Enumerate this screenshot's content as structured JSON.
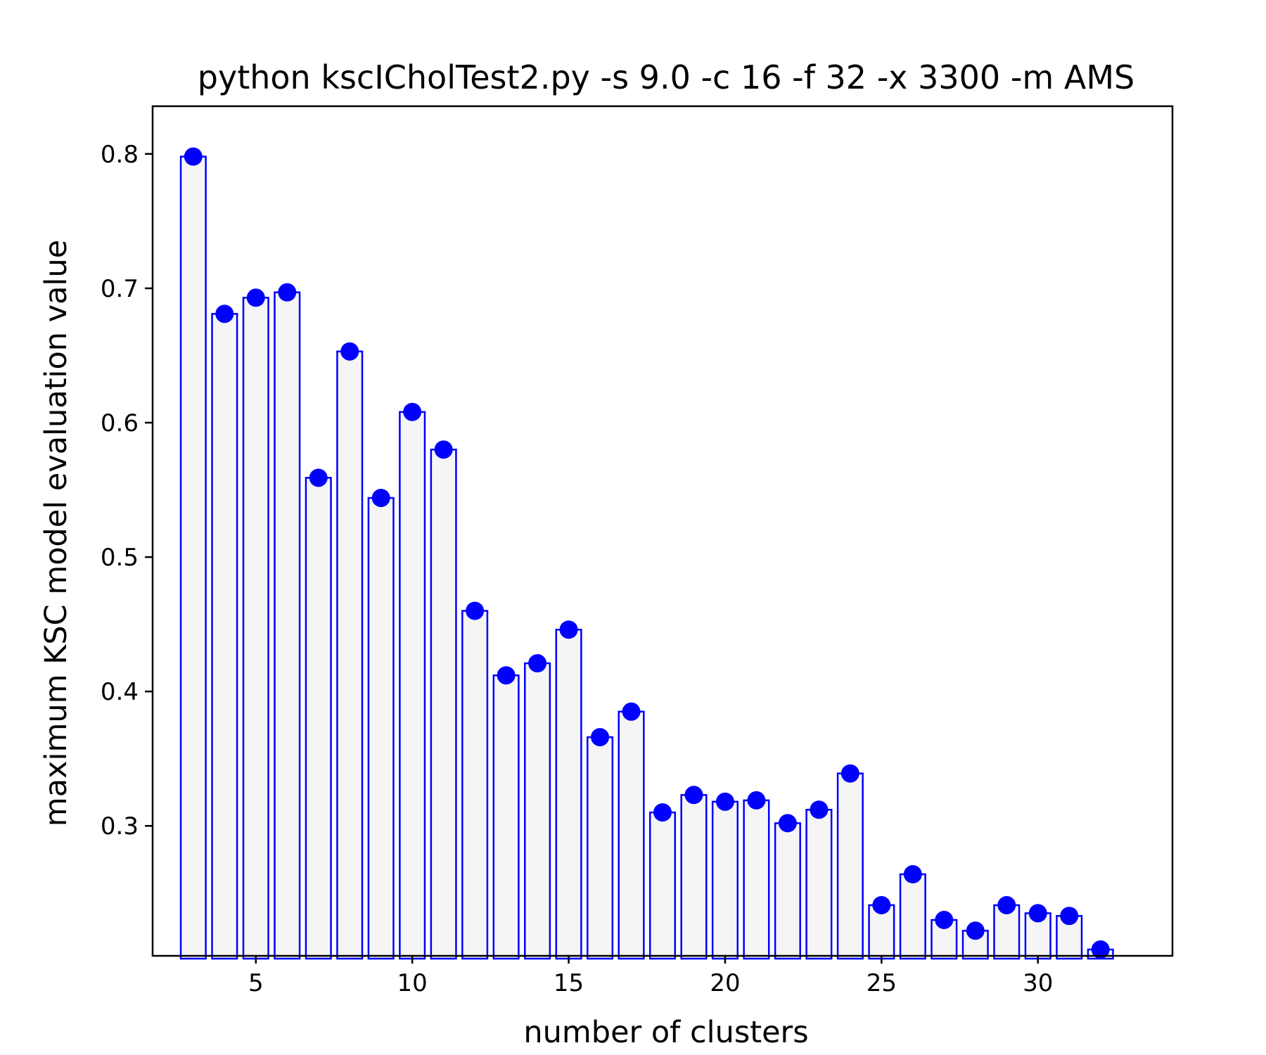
{
  "chart_data": {
    "type": "bar",
    "title": "python kscICholTest2.py -s 9.0 -c 16 -f 32 -x 3300 -m AMS",
    "xlabel": "number of clusters",
    "ylabel": "maximum KSC model evaluation value",
    "x": [
      3,
      4,
      5,
      6,
      7,
      8,
      9,
      10,
      11,
      12,
      13,
      14,
      15,
      16,
      17,
      18,
      19,
      20,
      21,
      22,
      23,
      24,
      25,
      26,
      27,
      28,
      29,
      30,
      31,
      32
    ],
    "values": [
      0.798,
      0.681,
      0.693,
      0.697,
      0.559,
      0.653,
      0.544,
      0.608,
      0.58,
      0.46,
      0.412,
      0.421,
      0.446,
      0.366,
      0.385,
      0.31,
      0.323,
      0.318,
      0.319,
      0.302,
      0.312,
      0.339,
      0.241,
      0.264,
      0.23,
      0.222,
      0.241,
      0.235,
      0.233,
      0.208
    ],
    "xlim": [
      1.7,
      34.3
    ],
    "ylim": [
      0.2033,
      0.8355
    ],
    "xticks": [
      5,
      10,
      15,
      20,
      25,
      30
    ],
    "yticks": [
      0.3,
      0.4,
      0.5,
      0.6,
      0.7,
      0.8
    ],
    "xtick_labels": [
      "5",
      "10",
      "15",
      "20",
      "25",
      "30"
    ],
    "ytick_labels": [
      "0.3",
      "0.4",
      "0.5",
      "0.6",
      "0.7",
      "0.8"
    ],
    "grid": false,
    "legend": "none",
    "bar_fill": "#f5f5f5",
    "bar_edge": "#0000ff",
    "marker_color": "#0000ff"
  }
}
